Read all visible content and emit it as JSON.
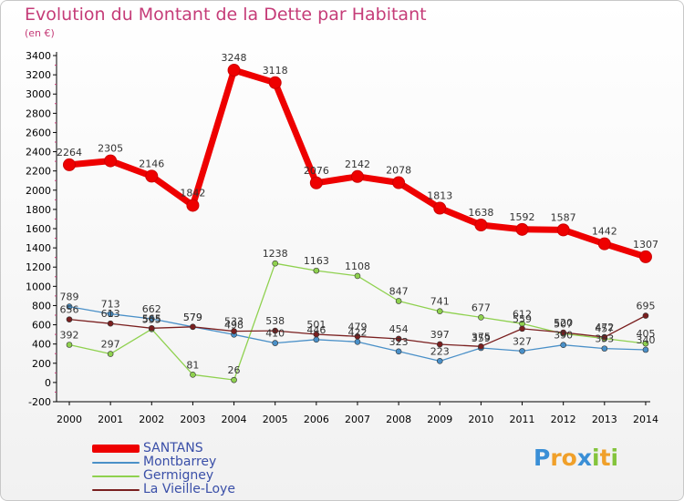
{
  "title": "Evolution du Montant de la Dette par Habitant",
  "subtitle": "(en €)",
  "logo": {
    "text": "Proxiti",
    "letters": [
      {
        "ch": "P",
        "color": "#3a8fd6"
      },
      {
        "ch": "r",
        "color": "#f0a02a"
      },
      {
        "ch": "o",
        "color": "#f0a02a"
      },
      {
        "ch": "x",
        "color": "#3a8fd6"
      },
      {
        "ch": "i",
        "color": "#84c43c"
      },
      {
        "ch": "t",
        "color": "#f0a02a"
      },
      {
        "ch": "i",
        "color": "#84c43c"
      }
    ]
  },
  "chart_data": {
    "type": "line",
    "title": "Evolution du Montant de la Dette par Habitant",
    "subtitle": "(en €)",
    "categories": [
      "2000",
      "2001",
      "2002",
      "2003",
      "2004",
      "2005",
      "2006",
      "2007",
      "2008",
      "2009",
      "2010",
      "2011",
      "2012",
      "2013",
      "2014"
    ],
    "ylim": [
      -200,
      3400
    ],
    "yticks": [
      -200,
      0,
      200,
      400,
      600,
      800,
      1000,
      1200,
      1400,
      1600,
      1800,
      2000,
      2200,
      2400,
      2600,
      2800,
      3000,
      3200,
      3400
    ],
    "grid": false,
    "legend_position": "bottom-left",
    "series": [
      {
        "name": "SANTANS",
        "color": "#ee0000",
        "values": [
          2264,
          2305,
          2146,
          1842,
          3248,
          3118,
          2076,
          2142,
          2078,
          1813,
          1638,
          1592,
          1587,
          1442,
          1307
        ]
      },
      {
        "name": "Montbarrey",
        "color": "#4a90c8",
        "values": [
          789,
          713,
          662,
          579,
          498,
          410,
          446,
          422,
          323,
          223,
          359,
          327,
          390,
          353,
          340
        ]
      },
      {
        "name": "Germigney",
        "color": "#8fd14f",
        "values": [
          392,
          297,
          555,
          81,
          26,
          1238,
          1163,
          1108,
          847,
          741,
          677,
          612,
          507,
          457,
          405
        ]
      },
      {
        "name": "La Vieille-Loye",
        "color": "#7a1f1f",
        "values": [
          656,
          613,
          565,
          579,
          533,
          538,
          501,
          479,
          454,
          397,
          375,
          559,
          520,
          472,
          695
        ]
      }
    ]
  }
}
